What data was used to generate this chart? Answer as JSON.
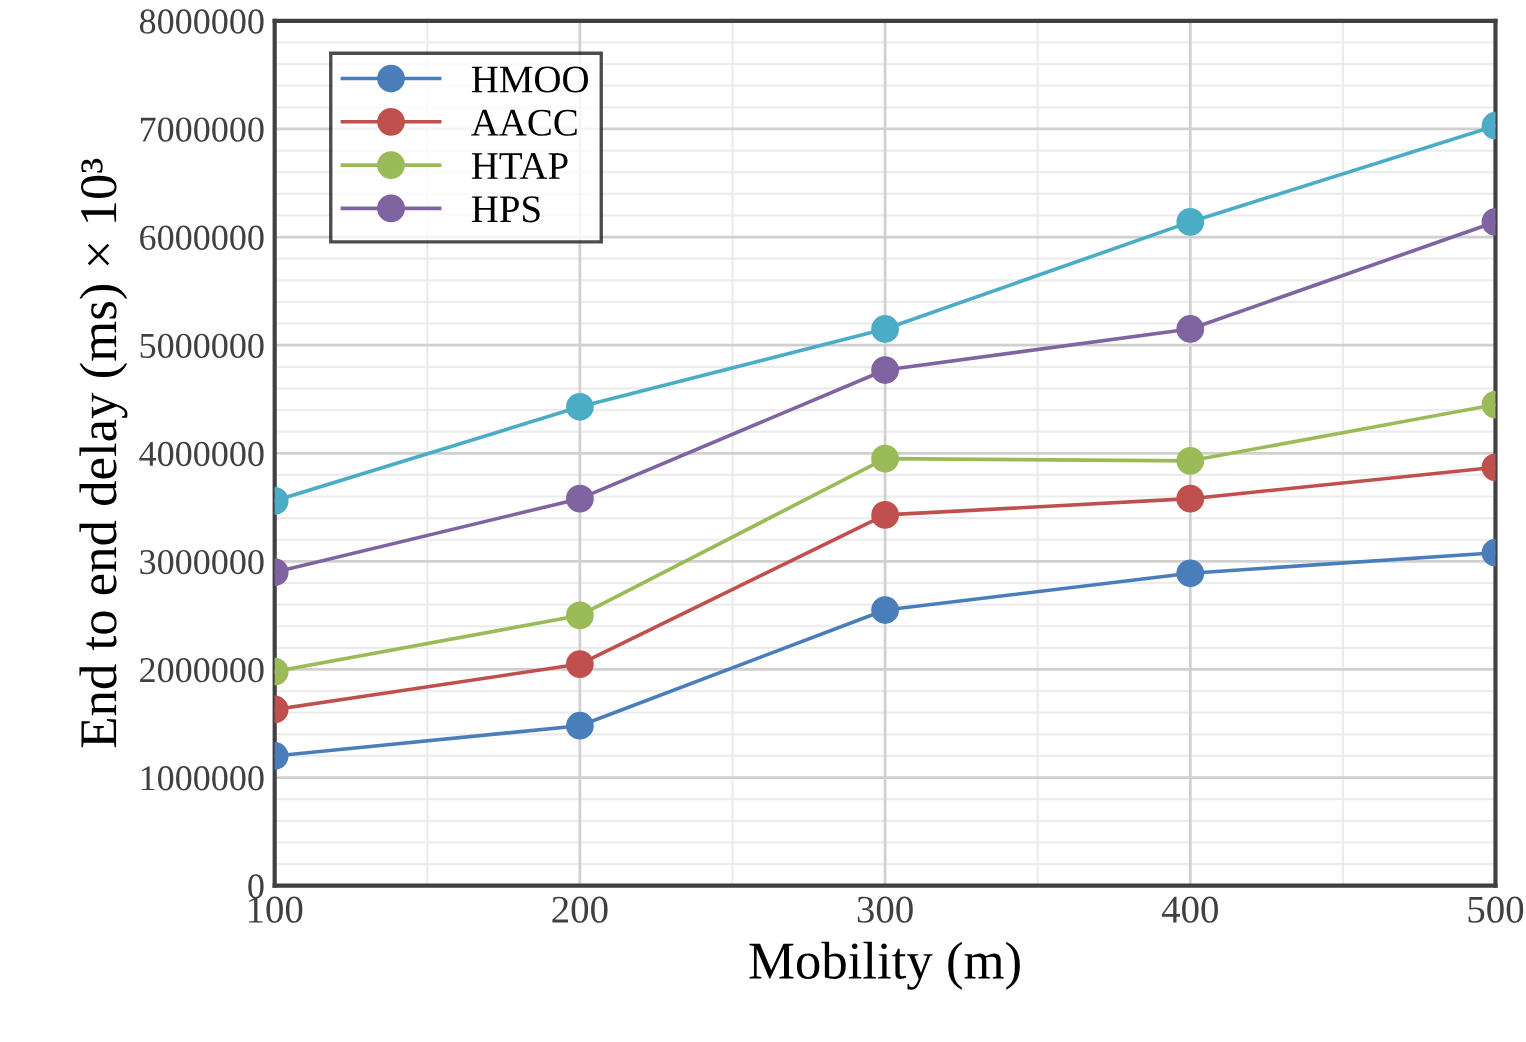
{
  "chart_data": {
    "type": "line",
    "xlabel": "Mobility (m)",
    "ylabel": "End to end delay (ms) × 10³",
    "x": [
      100,
      200,
      300,
      400,
      500
    ],
    "series": [
      {
        "name": "HMOO",
        "color": "#4a7ebb",
        "values": [
          1200000,
          1480000,
          2550000,
          2890000,
          3080000
        ]
      },
      {
        "name": "AACC",
        "color": "#c0504d",
        "values": [
          1630000,
          2050000,
          3430000,
          3580000,
          3870000
        ]
      },
      {
        "name": "HTAP",
        "color": "#9bbb59",
        "values": [
          1980000,
          2500000,
          3950000,
          3930000,
          4450000
        ]
      },
      {
        "name": "HPS",
        "color": "#8064a2",
        "values": [
          2900000,
          3580000,
          4770000,
          5150000,
          6140000
        ]
      },
      {
        "color": "#4bacc6",
        "values": [
          3560000,
          4430000,
          5150000,
          6140000,
          7030000
        ]
      }
    ],
    "xlim": [
      100,
      500
    ],
    "xticks": [
      100,
      200,
      300,
      400,
      500
    ],
    "ylim": [
      0,
      8000000
    ],
    "yticks": [
      0,
      1000000,
      2000000,
      3000000,
      4000000,
      5000000,
      6000000,
      7000000,
      8000000
    ],
    "grid": true,
    "legend": "top left",
    "marker": "circle",
    "line_style": "solid"
  }
}
